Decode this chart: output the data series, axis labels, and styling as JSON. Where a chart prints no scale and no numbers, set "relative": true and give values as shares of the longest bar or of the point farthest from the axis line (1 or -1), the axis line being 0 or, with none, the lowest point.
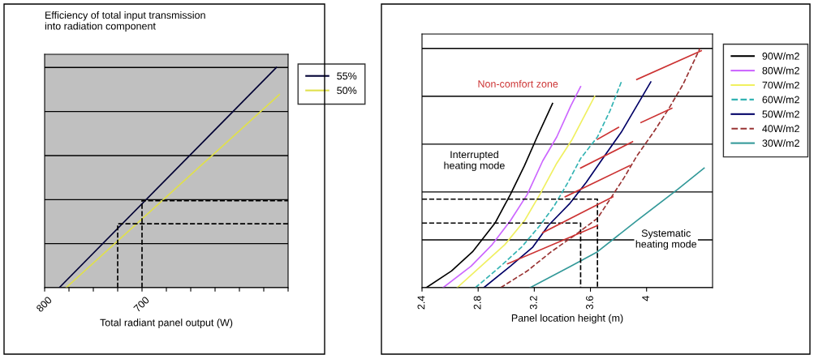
{
  "chart_data": [
    {
      "type": "line",
      "title": "Efficiency of total input transmission\ninto radiation component",
      "xlabel": "Total radiant panel output (W)",
      "relative": true,
      "grid": "y",
      "legend": "right",
      "xlim": [
        800,
        550
      ],
      "xticks": [
        800,
        {
          "value": 775,
          "label": null
        },
        {
          "value": 750,
          "label": null
        },
        {
          "value": 725,
          "label": null
        },
        700,
        {
          "value": 675,
          "label": null
        },
        {
          "value": 650,
          "label": null
        },
        {
          "value": 625,
          "label": null
        },
        {
          "value": 600,
          "label": null
        },
        {
          "value": 575,
          "label": null
        },
        {
          "value": 550,
          "label": null
        }
      ],
      "series": [
        {
          "name": "55%",
          "color": "#000033",
          "x": [
            785,
            562
          ],
          "values": [
            0,
            1
          ]
        },
        {
          "name": "50%",
          "color": "#e0e04a",
          "x": [
            778,
            559
          ],
          "values": [
            0,
            0.877
          ]
        },
        {
          "color": "#000000",
          "line_style": "dashed",
          "x": [
            725,
            725,
            550
          ],
          "values": [
            0,
            0.29,
            0.29
          ]
        },
        {
          "color": "#000000",
          "line_style": "dashed",
          "x": [
            700,
            700,
            550
          ],
          "values": [
            0,
            0.395,
            0.395
          ]
        }
      ]
    },
    {
      "type": "line",
      "xlabel": "Panel location height (m)",
      "relative": true,
      "grid": "y",
      "legend": "right",
      "xlim": [
        2.4,
        4.47
      ],
      "xticks": [
        2.4,
        2.8,
        3.2,
        3.6,
        4
      ],
      "annotations": [
        "Non-comfort zone",
        "Interrupted\nheating mode",
        "Systematic\nheating mode"
      ],
      "series": [
        {
          "name": "90W/m2",
          "color": "#000000",
          "x": [
            2.43,
            2.61,
            2.76,
            2.92,
            3.03,
            3.13,
            3.22,
            3.33
          ],
          "values": [
            0,
            0.07,
            0.15,
            0.27,
            0.39,
            0.51,
            0.63,
            0.77
          ]
        },
        {
          "name": "80W/m2",
          "color": "#cc66ff",
          "x": [
            2.55,
            2.75,
            2.9,
            3.03,
            3.15,
            3.26,
            3.36,
            3.46,
            3.53
          ],
          "values": [
            0,
            0.09,
            0.18,
            0.28,
            0.39,
            0.53,
            0.63,
            0.76,
            0.84
          ]
        },
        {
          "name": "70W/m2",
          "color": "#f0f060",
          "x": [
            2.65,
            2.84,
            2.99,
            3.13,
            3.24,
            3.36,
            3.47,
            3.63
          ],
          "values": [
            0,
            0.1,
            0.18,
            0.28,
            0.39,
            0.52,
            0.62,
            0.8
          ]
        },
        {
          "name": "60W/m2",
          "color": "#33b3b3",
          "line_style": "dashed",
          "x": [
            2.78,
            2.96,
            3.11,
            3.24,
            3.34,
            3.44,
            3.53,
            3.65,
            3.74,
            3.82
          ],
          "values": [
            0,
            0.09,
            0.17,
            0.26,
            0.34,
            0.44,
            0.54,
            0.63,
            0.74,
            0.86
          ]
        },
        {
          "name": "50W/m2",
          "color": "#000066",
          "x": [
            2.84,
            3.03,
            3.19,
            3.3,
            3.45,
            3.57,
            3.7,
            3.82,
            3.93,
            4.03
          ],
          "values": [
            0,
            0.09,
            0.17,
            0.26,
            0.35,
            0.44,
            0.55,
            0.65,
            0.76,
            0.86
          ]
        },
        {
          "name": "40W/m2",
          "color": "#993333",
          "line_style": "dashed",
          "x": [
            2.96,
            3.15,
            3.32,
            3.49,
            3.65,
            3.74,
            3.84,
            3.93,
            4.05,
            4.16,
            4.26,
            4.38
          ],
          "values": [
            0,
            0.07,
            0.15,
            0.22,
            0.29,
            0.37,
            0.46,
            0.55,
            0.65,
            0.75,
            0.85,
            1.0
          ]
        },
        {
          "name": "30W/m2",
          "color": "#339999",
          "x": [
            3.17,
            3.46,
            3.65,
            3.93,
            4.22,
            4.41
          ],
          "values": [
            0,
            0.09,
            0.15,
            0.28,
            0.41,
            0.5
          ]
        },
        {
          "color": "#000000",
          "line_style": "dashed",
          "x": [
            2.4,
            3.65,
            3.65
          ],
          "values": [
            0.37,
            0.37,
            0
          ]
        },
        {
          "color": "#000000",
          "line_style": "dashed",
          "x": [
            2.4,
            3.53,
            3.53
          ],
          "values": [
            0.27,
            0.27,
            0
          ]
        },
        {
          "color": "#cc3333",
          "x": [
            3.93,
            4.39
          ],
          "values": [
            0.87,
            0.99
          ]
        },
        {
          "color": "#cc3333",
          "x": [
            3.96,
            4.18
          ],
          "values": [
            0.69,
            0.75
          ]
        },
        {
          "color": "#cc3333",
          "x": [
            3.65,
            3.8
          ],
          "values": [
            0.62,
            0.67
          ]
        },
        {
          "color": "#cc3333",
          "x": [
            3.53,
            3.9
          ],
          "values": [
            0.5,
            0.61
          ]
        },
        {
          "color": "#cc3333",
          "x": [
            3.42,
            3.88
          ],
          "values": [
            0.38,
            0.51
          ]
        },
        {
          "color": "#cc3333",
          "x": [
            3.26,
            3.76
          ],
          "values": [
            0.23,
            0.38
          ]
        },
        {
          "color": "#cc3333",
          "x": [
            3.01,
            3.65
          ],
          "values": [
            0.1,
            0.26
          ]
        }
      ]
    }
  ]
}
